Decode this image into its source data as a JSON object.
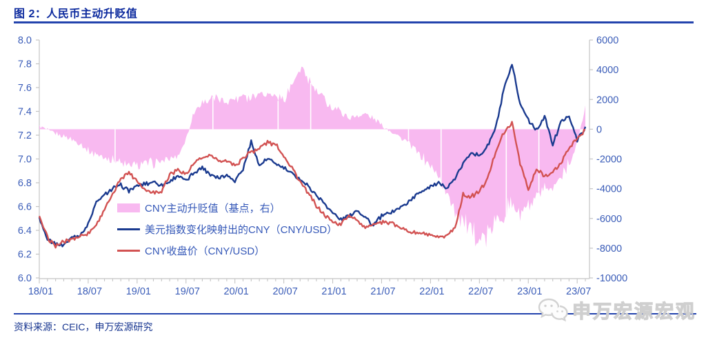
{
  "title": "图 2：人民币主动升贬值",
  "source": "资料来源：CEIC，申万宏源研究",
  "watermark": {
    "icon": "wechat-icon",
    "text": "申万宏源宏观"
  },
  "colors": {
    "title_blue": "#0c2a9e",
    "rule_blue": "#2343ad",
    "axis_label_blue": "#3a5cb8",
    "legend_text_blue": "#3558b8",
    "area_pink": "#f8b9f0",
    "line_navy": "#1a3a8f",
    "line_red": "#d25252",
    "spine_gray": "#c4c4c4"
  },
  "chart_data": {
    "type": "area+line combo, dual axis",
    "x_start": "2018-01",
    "x_end": "2023-08",
    "x_tick_labels": [
      "18/01",
      "18/07",
      "19/01",
      "19/07",
      "20/01",
      "20/07",
      "21/01",
      "21/07",
      "22/01",
      "22/07",
      "23/01",
      "23/07"
    ],
    "x_tick_month_indices": [
      0,
      6,
      12,
      18,
      24,
      30,
      36,
      42,
      48,
      54,
      60,
      66
    ],
    "left_axis": {
      "min": 6.0,
      "max": 8.0,
      "tick_labels": [
        "8.0",
        "7.8",
        "7.6",
        "7.4",
        "7.2",
        "7.0",
        "6.8",
        "6.6",
        "6.4",
        "6.2",
        "6.0"
      ]
    },
    "right_axis": {
      "min": -10000,
      "max": 6000,
      "tick_labels": [
        "6000",
        "4000",
        "2000",
        "0",
        "-2000",
        "-4000",
        "-6000",
        "-8000",
        "-10000"
      ]
    },
    "gap_month_indices": [
      9,
      21,
      29,
      33,
      45,
      49,
      57,
      61
    ],
    "series": [
      {
        "name": "CNY主动升贬值（基点，右）",
        "type": "area",
        "axis": "right",
        "color": "#f8b9f0",
        "values": [
          250,
          -100,
          -300,
          -450,
          -700,
          -1000,
          -1400,
          -1700,
          -1900,
          -2100,
          -2300,
          -2450,
          -2400,
          -2300,
          -2250,
          -2150,
          -2100,
          -1800,
          -700,
          1200,
          1800,
          2000,
          2100,
          1900,
          2100,
          2300,
          2100,
          2500,
          2400,
          2200,
          2000,
          3000,
          3850,
          3400,
          2600,
          2000,
          1500,
          1200,
          800,
          900,
          1000,
          700,
          300,
          -100,
          -400,
          -800,
          -1300,
          -1900,
          -2500,
          -3100,
          -4300,
          -5300,
          -6200,
          -7000,
          -7500,
          -7000,
          -6300,
          -5600,
          -5000,
          -5800,
          -5200,
          -4600,
          -4200,
          -3900,
          -3100,
          -2300,
          -1100,
          1600
        ]
      },
      {
        "name": "美元指数变化映射出的CNY（CNY/USD）",
        "type": "line",
        "axis": "left",
        "color": "#1a3a8f",
        "values": [
          6.5,
          6.33,
          6.29,
          6.28,
          6.34,
          6.36,
          6.45,
          6.63,
          6.7,
          6.75,
          6.78,
          6.73,
          6.77,
          6.79,
          6.81,
          6.78,
          6.81,
          6.86,
          6.82,
          6.89,
          6.93,
          6.87,
          6.84,
          6.87,
          6.82,
          6.91,
          7.15,
          6.94,
          7.0,
          6.96,
          6.92,
          6.88,
          6.83,
          6.77,
          6.7,
          6.62,
          6.55,
          6.49,
          6.52,
          6.57,
          6.51,
          6.44,
          6.52,
          6.55,
          6.58,
          6.62,
          6.68,
          6.74,
          6.77,
          6.79,
          6.76,
          6.83,
          6.96,
          7.06,
          7.02,
          7.11,
          7.26,
          7.58,
          7.79,
          7.46,
          7.33,
          7.24,
          7.36,
          7.12,
          7.31,
          7.37,
          7.16,
          7.26
        ]
      },
      {
        "name": "CNY收盘价（CNY/USD）",
        "type": "line",
        "axis": "left",
        "color": "#d25252",
        "values": [
          6.51,
          6.34,
          6.27,
          6.3,
          6.33,
          6.35,
          6.38,
          6.45,
          6.58,
          6.7,
          6.84,
          6.89,
          6.82,
          6.74,
          6.72,
          6.73,
          6.87,
          6.91,
          6.87,
          6.96,
          7.01,
          7.03,
          6.98,
          6.99,
          6.94,
          7.01,
          7.06,
          7.09,
          7.14,
          7.12,
          7.03,
          6.93,
          6.81,
          6.71,
          6.61,
          6.53,
          6.47,
          6.45,
          6.53,
          6.49,
          6.41,
          6.46,
          6.47,
          6.46,
          6.44,
          6.4,
          6.38,
          6.37,
          6.36,
          6.33,
          6.36,
          6.42,
          6.7,
          6.68,
          6.73,
          6.83,
          7.07,
          7.22,
          7.3,
          6.97,
          6.74,
          6.91,
          6.86,
          6.89,
          6.96,
          7.1,
          7.16,
          7.25
        ]
      }
    ]
  }
}
